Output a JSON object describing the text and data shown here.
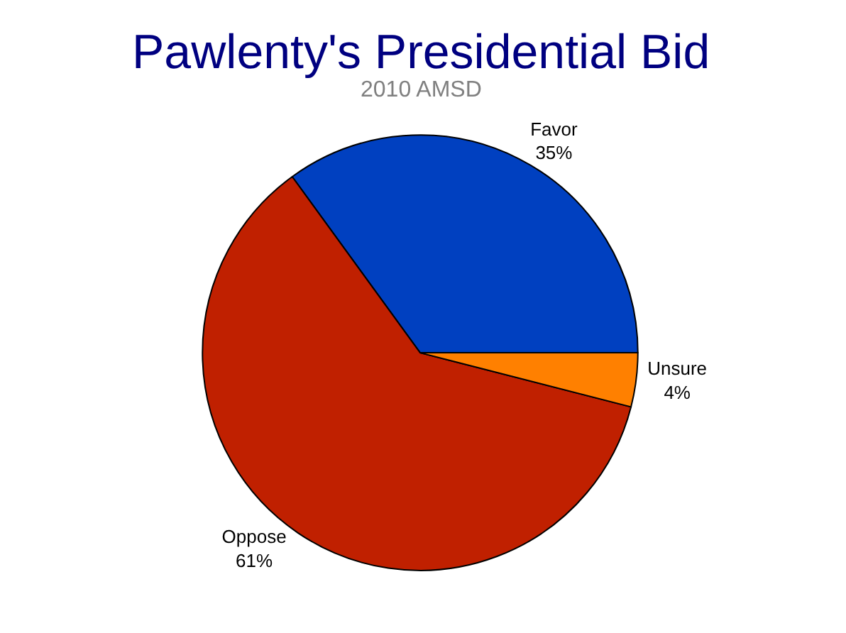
{
  "chart_data": {
    "type": "pie",
    "title": "Pawlenty's Presidential Bid",
    "subtitle": "2010 AMSD",
    "categories": [
      "Favor",
      "Oppose",
      "Unsure"
    ],
    "values": [
      35,
      61,
      4
    ],
    "value_labels": [
      "35%",
      "61%",
      "4%"
    ],
    "colors": [
      "#0040c0",
      "#c02000",
      "#ff8000"
    ],
    "legend": false
  }
}
